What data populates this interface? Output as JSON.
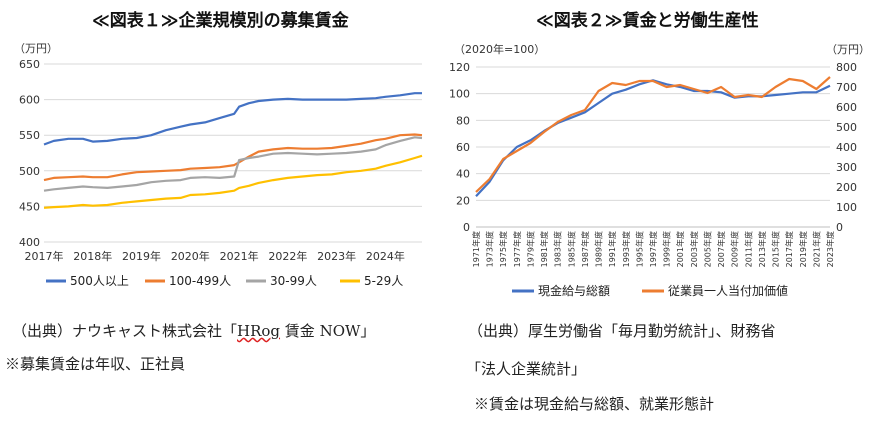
{
  "chart_data": [
    {
      "type": "line",
      "title": "≪図表１≫企業規模別の募集賃金",
      "unit": "（万円）",
      "ylim": [
        400,
        650
      ],
      "yticks": [
        400,
        450,
        500,
        550,
        600,
        650
      ],
      "xlim": [
        2017,
        2024.75
      ],
      "xticks": [
        "2017年",
        "2018年",
        "2019年",
        "2020年",
        "2021年",
        "2022年",
        "2023年",
        "2024年"
      ],
      "grid": true,
      "legend_position": "bottom",
      "series": [
        {
          "name": "500人以上",
          "color": "#4472C4",
          "x": [
            2017.0,
            2017.2,
            2017.5,
            2017.8,
            2018.0,
            2018.3,
            2018.6,
            2018.9,
            2019.2,
            2019.5,
            2019.8,
            2020.0,
            2020.3,
            2020.6,
            2020.9,
            2021.0,
            2021.2,
            2021.4,
            2021.7,
            2022.0,
            2022.3,
            2022.6,
            2022.9,
            2023.2,
            2023.5,
            2023.8,
            2024.0,
            2024.3,
            2024.6,
            2024.75
          ],
          "values": [
            537,
            542,
            545,
            545,
            541,
            542,
            545,
            546,
            550,
            557,
            562,
            565,
            568,
            574,
            580,
            590,
            595,
            598,
            600,
            601,
            600,
            600,
            600,
            600,
            601,
            602,
            604,
            606,
            609,
            609
          ]
        },
        {
          "name": "100-499人",
          "color": "#ED7D31",
          "x": [
            2017.0,
            2017.2,
            2017.5,
            2017.8,
            2018.0,
            2018.3,
            2018.6,
            2018.9,
            2019.2,
            2019.5,
            2019.8,
            2020.0,
            2020.3,
            2020.6,
            2020.9,
            2021.0,
            2021.2,
            2021.4,
            2021.7,
            2022.0,
            2022.3,
            2022.6,
            2022.9,
            2023.2,
            2023.5,
            2023.8,
            2024.0,
            2024.3,
            2024.6,
            2024.75
          ],
          "values": [
            487,
            490,
            491,
            492,
            491,
            491,
            495,
            498,
            499,
            500,
            501,
            503,
            504,
            505,
            508,
            512,
            520,
            527,
            530,
            532,
            531,
            531,
            532,
            535,
            538,
            543,
            545,
            550,
            551,
            550
          ]
        },
        {
          "name": "30-99人",
          "color": "#A5A5A5",
          "x": [
            2017.0,
            2017.2,
            2017.5,
            2017.8,
            2018.0,
            2018.3,
            2018.6,
            2018.9,
            2019.2,
            2019.5,
            2019.8,
            2020.0,
            2020.3,
            2020.6,
            2020.9,
            2021.0,
            2021.2,
            2021.4,
            2021.7,
            2022.0,
            2022.3,
            2022.6,
            2022.9,
            2023.2,
            2023.5,
            2023.8,
            2024.0,
            2024.3,
            2024.6,
            2024.75
          ],
          "values": [
            472,
            474,
            476,
            478,
            477,
            476,
            478,
            480,
            484,
            486,
            487,
            490,
            491,
            490,
            492,
            515,
            518,
            520,
            524,
            525,
            524,
            523,
            524,
            525,
            527,
            530,
            536,
            542,
            547,
            546
          ]
        },
        {
          "name": "5-29人",
          "color": "#FFC000",
          "x": [
            2017.0,
            2017.2,
            2017.5,
            2017.8,
            2018.0,
            2018.3,
            2018.6,
            2018.9,
            2019.2,
            2019.5,
            2019.8,
            2020.0,
            2020.3,
            2020.6,
            2020.9,
            2021.0,
            2021.2,
            2021.4,
            2021.7,
            2022.0,
            2022.3,
            2022.6,
            2022.9,
            2023.2,
            2023.5,
            2023.8,
            2024.0,
            2024.3,
            2024.6,
            2024.75
          ],
          "values": [
            448,
            449,
            450,
            452,
            451,
            452,
            455,
            457,
            459,
            461,
            462,
            466,
            467,
            469,
            472,
            476,
            479,
            483,
            487,
            490,
            492,
            494,
            495,
            498,
            500,
            503,
            507,
            512,
            518,
            521
          ]
        }
      ]
    },
    {
      "type": "line",
      "title": "≪図表２≫賃金と労働生産性",
      "unit_left": "（2020年=100）",
      "unit_right": "（万円）",
      "ylim_left": [
        0,
        120
      ],
      "yticks_left": [
        0,
        20,
        40,
        60,
        80,
        100,
        120
      ],
      "ylim_right": [
        0,
        800
      ],
      "yticks_right": [
        0,
        100,
        200,
        300,
        400,
        500,
        600,
        700,
        800
      ],
      "categories": [
        "1971年度",
        "1973年度",
        "1975年度",
        "1977年度",
        "1979年度",
        "1981年度",
        "1983年度",
        "1985年度",
        "1987年度",
        "1989年度",
        "1991年度",
        "1993年度",
        "1995年度",
        "1997年度",
        "1999年度",
        "2001年度",
        "2003年度",
        "2005年度",
        "2007年度",
        "2009年度",
        "2011年度",
        "2013年度",
        "2015年度",
        "2017年度",
        "2019年度",
        "2021年度",
        "2023年度"
      ],
      "grid": true,
      "legend_position": "bottom",
      "series": [
        {
          "name": "現金給与総額",
          "color": "#4472C4",
          "axis": "left",
          "x": [
            1971,
            1973,
            1975,
            1977,
            1979,
            1981,
            1983,
            1985,
            1987,
            1989,
            1991,
            1993,
            1995,
            1997,
            1999,
            2001,
            2003,
            2005,
            2007,
            2009,
            2011,
            2013,
            2015,
            2017,
            2019,
            2021,
            2023
          ],
          "values": [
            23,
            34,
            50,
            60,
            65,
            72,
            78,
            82,
            86,
            93,
            100,
            103,
            107,
            110,
            107,
            105,
            102,
            102,
            101,
            97,
            98,
            98,
            99,
            100,
            101,
            101,
            106
          ]
        },
        {
          "name": "従業員一人当付加価値",
          "color": "#ED7D31",
          "axis": "right",
          "x": [
            1971,
            1973,
            1975,
            1977,
            1979,
            1981,
            1983,
            1985,
            1987,
            1989,
            1991,
            1993,
            1995,
            1997,
            1999,
            2001,
            2003,
            2005,
            2007,
            2009,
            2011,
            2013,
            2015,
            2017,
            2019,
            2021,
            2023
          ],
          "values": [
            175,
            240,
            340,
            380,
            420,
            475,
            525,
            560,
            585,
            680,
            720,
            710,
            730,
            730,
            700,
            710,
            690,
            670,
            700,
            650,
            660,
            650,
            700,
            740,
            730,
            690,
            750
          ]
        }
      ]
    }
  ],
  "sources": {
    "left_line1_pre": "（出典）ナウキャスト株式会社「",
    "left_line1_mark": "HRog",
    "left_line1_post": " 賃金 NOW」",
    "left_line2": "※募集賃金は年収、正社員",
    "right_line1": "（出典）厚生労働省「毎月勤労統計」、財務省",
    "right_line2": "「法人企業統計」",
    "right_line3": "※賃金は現金給与総額、就業形態計"
  },
  "colors": {
    "grid": "#D9D9D9",
    "axis": "#BFBFBF"
  }
}
